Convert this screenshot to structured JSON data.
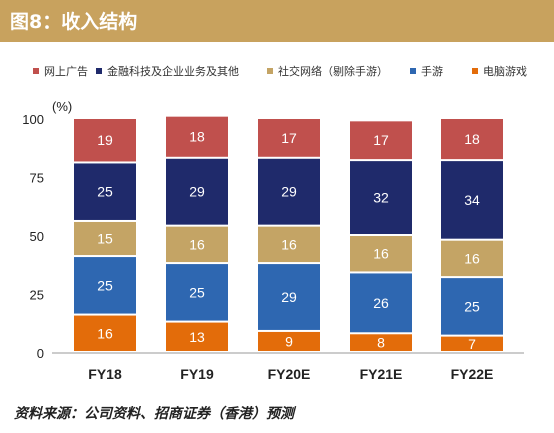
{
  "header": {
    "title": "图8：收入结构"
  },
  "source_note": "资料来源：公司资料、招商证券（香港）预测",
  "colors": {
    "header_bg": "#c8a25e",
    "online_ads": "#c0504d",
    "fintech_business": "#1f2a6b",
    "social_network": "#c4a465",
    "mobile_games": "#2e67b1",
    "pc_games": "#e36c0a"
  },
  "chart_data": {
    "type": "bar",
    "stacked": true,
    "ylabel": "(%)",
    "ylim": [
      0,
      100
    ],
    "yticks": [
      0,
      25,
      50,
      75,
      100
    ],
    "legend_position": "top",
    "categories": [
      "FY18",
      "FY19",
      "FY20E",
      "FY21E",
      "FY22E"
    ],
    "series": [
      {
        "name": "电脑游戏",
        "color": "#e36c0a",
        "values": [
          16,
          13,
          9,
          8,
          7
        ]
      },
      {
        "name": "手游",
        "color": "#2e67b1",
        "values": [
          25,
          25,
          29,
          26,
          25
        ]
      },
      {
        "name": "社交网络（剔除手游）",
        "color": "#c4a465",
        "values": [
          15,
          16,
          16,
          16,
          16
        ]
      },
      {
        "name": "金融科技及企业业务及其他",
        "color": "#1f2a6b",
        "values": [
          25,
          29,
          29,
          32,
          34
        ]
      },
      {
        "name": "网上广告",
        "color": "#c0504d",
        "values": [
          19,
          18,
          17,
          17,
          18
        ]
      }
    ],
    "legend_order": [
      "网上广告",
      "金融科技及企业业务及其他",
      "社交网络（剔除手游）",
      "手游",
      "电脑游戏"
    ]
  }
}
